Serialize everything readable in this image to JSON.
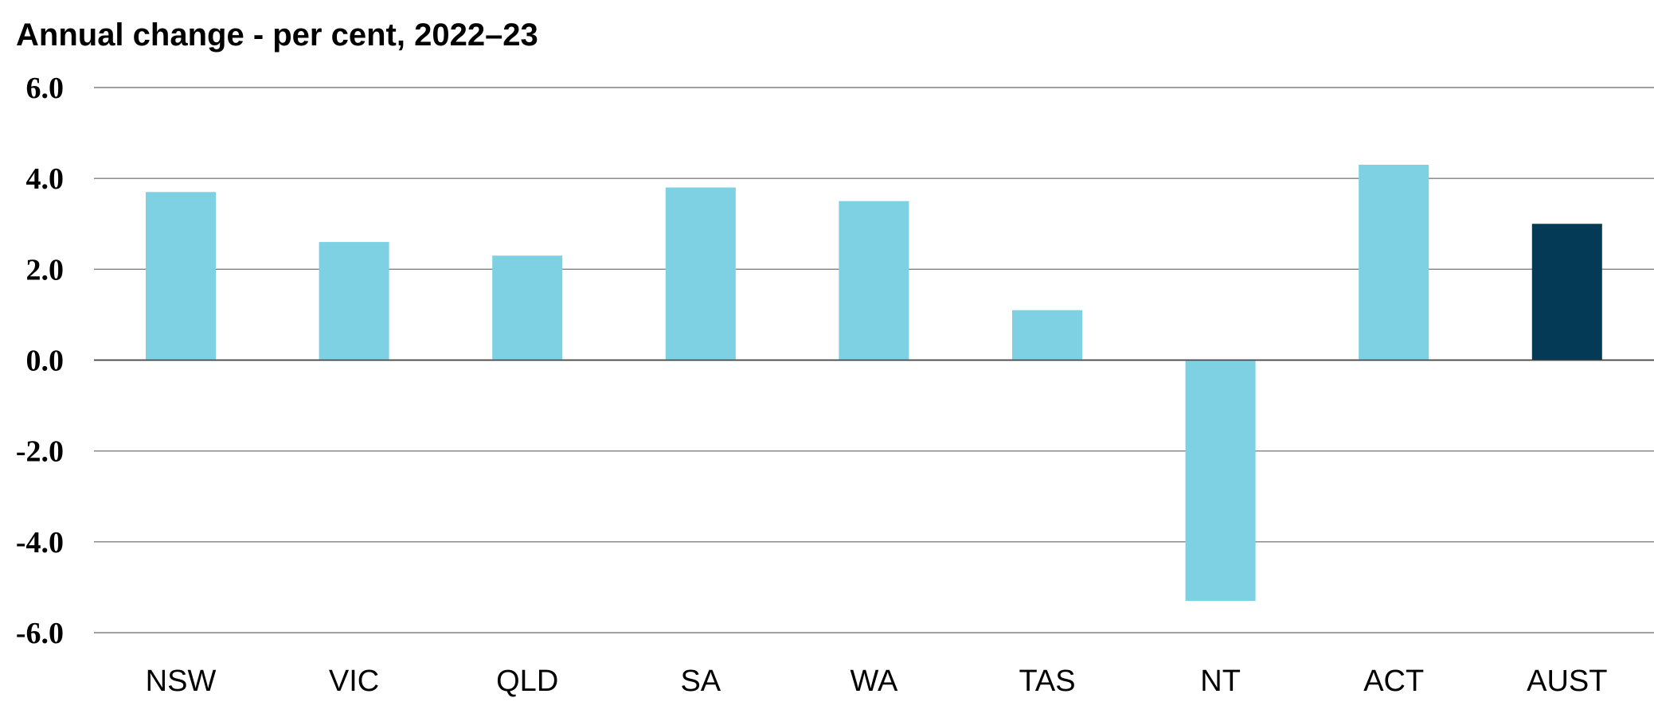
{
  "chart_data": {
    "type": "bar",
    "title": "Annual change - per cent, 2022–23",
    "xlabel": "",
    "ylabel": "",
    "categories": [
      "NSW",
      "VIC",
      "QLD",
      "SA",
      "WA",
      "TAS",
      "NT",
      "ACT",
      "AUST"
    ],
    "values": [
      3.7,
      2.6,
      2.3,
      3.8,
      3.5,
      1.1,
      -5.3,
      4.3,
      3.0
    ],
    "highlight": "AUST",
    "ylim": [
      -6.0,
      6.0
    ],
    "yticks": [
      6.0,
      4.0,
      2.0,
      0.0,
      -2.0,
      -4.0,
      -6.0
    ],
    "ytick_labels": [
      "6.0",
      "4.0",
      "2.0",
      "0.0",
      "-2.0",
      "-4.0",
      "-6.0"
    ],
    "grid": true,
    "colors": {
      "bar": "#7dd1e2",
      "highlight_bar": "#053a57",
      "grid": "#808080"
    }
  }
}
